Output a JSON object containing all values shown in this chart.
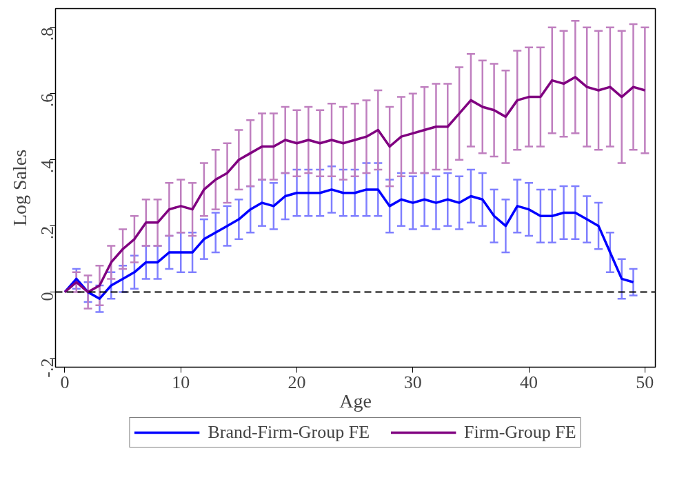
{
  "chart_data": {
    "type": "line",
    "xlabel": "Age",
    "ylabel": "Log Sales",
    "xlim": [
      -0.8,
      50.9
    ],
    "ylim": [
      -0.227,
      0.857
    ],
    "xticks": [
      0,
      10,
      20,
      30,
      40,
      50
    ],
    "yticks": [
      {
        "value": -0.2,
        "label": "-.2"
      },
      {
        "value": 0,
        "label": "0"
      },
      {
        "value": 0.2,
        "label": ".2"
      },
      {
        "value": 0.4,
        "label": ".4"
      },
      {
        "value": 0.6,
        "label": ".6"
      },
      {
        "value": 0.8,
        "label": ".8"
      }
    ],
    "legend": "bottom",
    "line_style": "solid",
    "ref_lines": [
      {
        "axis": "y",
        "value": 0,
        "color": "#000000",
        "line_style": "dashed"
      }
    ],
    "series": [
      {
        "name": "Brand-Firm-Group FE",
        "color": "#0000ff",
        "x": [
          0,
          1,
          2,
          3,
          4,
          5,
          6,
          7,
          8,
          9,
          10,
          11,
          12,
          13,
          14,
          15,
          16,
          17,
          18,
          19,
          20,
          21,
          22,
          23,
          24,
          25,
          26,
          27,
          28,
          29,
          30,
          31,
          32,
          33,
          34,
          35,
          36,
          37,
          38,
          39,
          40,
          41,
          42,
          43,
          44,
          45,
          46,
          47,
          48,
          49
        ],
        "values": [
          0,
          0.04,
          0.0,
          -0.02,
          0.02,
          0.04,
          0.06,
          0.09,
          0.09,
          0.12,
          0.12,
          0.12,
          0.16,
          0.18,
          0.2,
          0.22,
          0.25,
          0.27,
          0.26,
          0.29,
          0.3,
          0.3,
          0.3,
          0.31,
          0.3,
          0.3,
          0.31,
          0.31,
          0.26,
          0.28,
          0.27,
          0.28,
          0.27,
          0.28,
          0.27,
          0.29,
          0.28,
          0.23,
          0.2,
          0.26,
          0.25,
          0.23,
          0.23,
          0.24,
          0.24,
          0.22,
          0.2,
          0.12,
          0.04,
          0.03
        ],
        "errors": [
          null,
          0.03,
          0.03,
          0.04,
          0.04,
          0.04,
          0.05,
          0.05,
          0.05,
          0.05,
          0.06,
          0.06,
          0.06,
          0.06,
          0.06,
          0.06,
          0.07,
          0.07,
          0.07,
          0.07,
          0.07,
          0.07,
          0.07,
          0.07,
          0.07,
          0.07,
          0.08,
          0.08,
          0.08,
          0.08,
          0.08,
          0.08,
          0.08,
          0.08,
          0.08,
          0.08,
          0.08,
          0.08,
          0.08,
          0.08,
          0.08,
          0.08,
          0.08,
          0.08,
          0.08,
          0.07,
          0.07,
          0.06,
          0.06,
          0.04
        ]
      },
      {
        "name": "Firm-Group FE",
        "color": "#800080",
        "x": [
          0,
          1,
          2,
          3,
          4,
          5,
          6,
          7,
          8,
          9,
          10,
          11,
          12,
          13,
          14,
          15,
          16,
          17,
          18,
          19,
          20,
          21,
          22,
          23,
          24,
          25,
          26,
          27,
          28,
          29,
          30,
          31,
          32,
          33,
          34,
          35,
          36,
          37,
          38,
          39,
          40,
          41,
          42,
          43,
          44,
          45,
          46,
          47,
          48,
          49,
          50
        ],
        "values": [
          0,
          0.03,
          0.0,
          0.02,
          0.09,
          0.13,
          0.16,
          0.21,
          0.21,
          0.25,
          0.26,
          0.25,
          0.31,
          0.34,
          0.36,
          0.4,
          0.42,
          0.44,
          0.44,
          0.46,
          0.45,
          0.46,
          0.45,
          0.46,
          0.45,
          0.46,
          0.47,
          0.49,
          0.44,
          0.47,
          0.48,
          0.49,
          0.5,
          0.5,
          0.54,
          0.58,
          0.56,
          0.55,
          0.53,
          0.58,
          0.59,
          0.59,
          0.64,
          0.63,
          0.65,
          0.62,
          0.61,
          0.62,
          0.59,
          0.62,
          0.61
        ],
        "errors": [
          null,
          0.03,
          0.05,
          0.06,
          0.05,
          0.06,
          0.07,
          0.07,
          0.07,
          0.08,
          0.08,
          0.08,
          0.08,
          0.09,
          0.09,
          0.09,
          0.1,
          0.1,
          0.1,
          0.1,
          0.1,
          0.1,
          0.1,
          0.11,
          0.11,
          0.11,
          0.11,
          0.12,
          0.12,
          0.12,
          0.12,
          0.13,
          0.13,
          0.13,
          0.14,
          0.14,
          0.14,
          0.14,
          0.14,
          0.15,
          0.15,
          0.15,
          0.16,
          0.16,
          0.17,
          0.18,
          0.18,
          0.18,
          0.2,
          0.19,
          0.19
        ]
      }
    ]
  }
}
